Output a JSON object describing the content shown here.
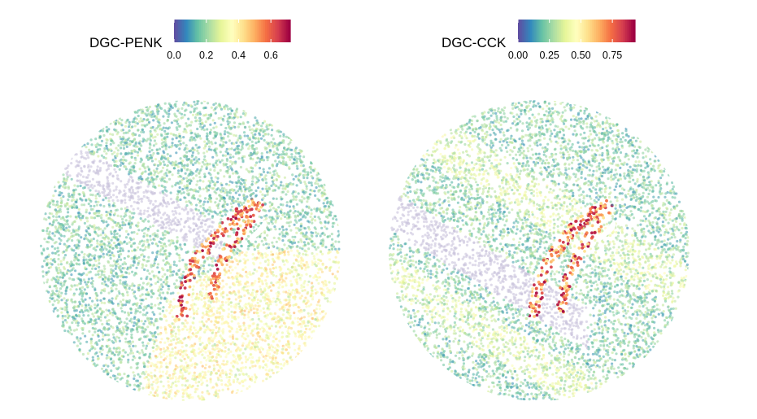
{
  "chart_data": [
    {
      "type": "scatter",
      "title": "DGC-PENK",
      "color_scale": {
        "palette": "Spectral (reversed)",
        "colors": [
          "#5E4FA2",
          "#3288BD",
          "#66C2A5",
          "#ABDDA4",
          "#E6F598",
          "#FFFFBF",
          "#FEE08B",
          "#FDAE61",
          "#F46D43",
          "#D53E4F",
          "#9E0142"
        ],
        "range": [
          0,
          0.72
        ],
        "tick_values": [
          0.0,
          0.2,
          0.4,
          0.6
        ],
        "tick_labels": [
          "0.0",
          "0.2",
          "0.4",
          "0.6"
        ]
      },
      "legend_position": "top",
      "grid": false,
      "axes_visible": false
    },
    {
      "type": "scatter",
      "title": "DGC-CCK",
      "color_scale": {
        "palette": "Spectral (reversed)",
        "colors": [
          "#5E4FA2",
          "#3288BD",
          "#66C2A5",
          "#ABDDA4",
          "#E6F598",
          "#FFFFBF",
          "#FEE08B",
          "#FDAE61",
          "#F46D43",
          "#D53E4F",
          "#9E0142"
        ],
        "range": [
          0,
          0.93
        ],
        "tick_values": [
          0.0,
          0.25,
          0.5,
          0.75
        ],
        "tick_labels": [
          "0.00",
          "0.25",
          "0.50",
          "0.75"
        ]
      },
      "legend_position": "top",
      "grid": false,
      "axes_visible": false
    }
  ]
}
